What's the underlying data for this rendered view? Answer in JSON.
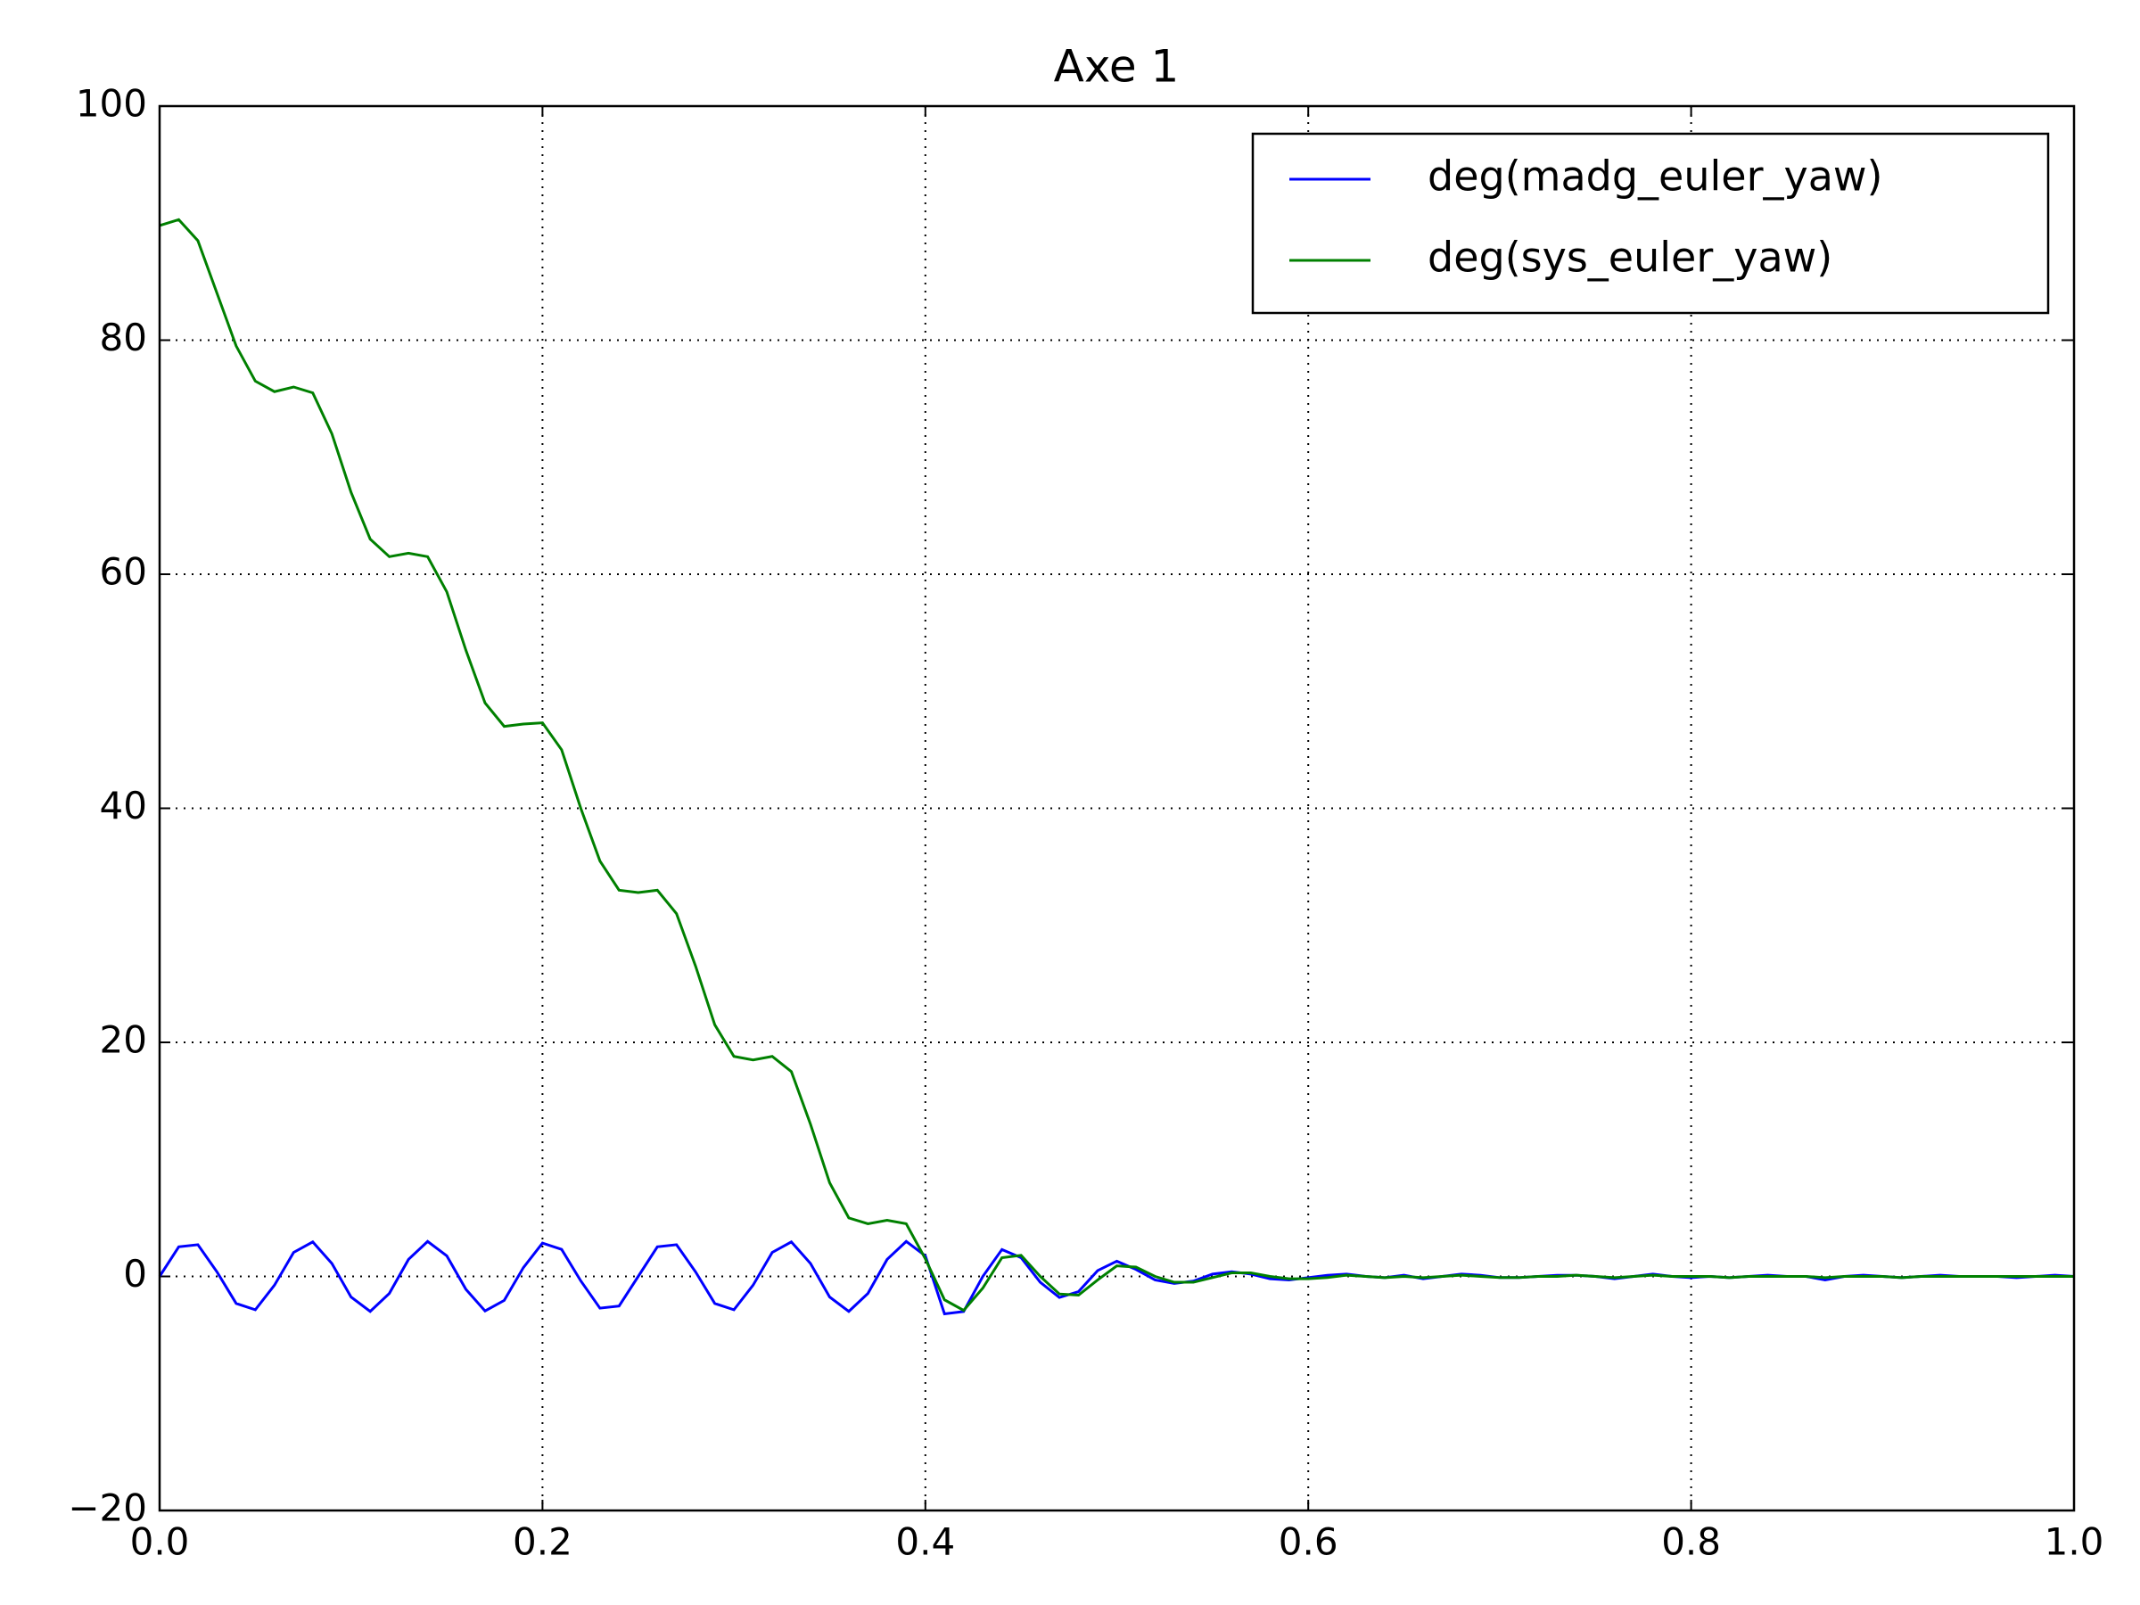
{
  "chart_data": {
    "type": "line",
    "title": "Axe 1",
    "x": [
      0,
      0.01,
      0.02,
      0.03,
      0.04,
      0.05,
      0.06,
      0.07,
      0.08,
      0.09,
      0.1,
      0.11,
      0.12,
      0.13,
      0.14,
      0.15,
      0.16,
      0.17,
      0.18,
      0.19,
      0.2,
      0.21,
      0.22,
      0.23,
      0.24,
      0.25,
      0.26,
      0.27,
      0.28,
      0.29,
      0.3,
      0.31,
      0.32,
      0.33,
      0.34,
      0.35,
      0.36,
      0.37,
      0.38,
      0.39,
      0.4,
      0.41,
      0.42,
      0.43,
      0.44,
      0.45,
      0.46,
      0.47,
      0.48,
      0.49,
      0.5,
      0.51,
      0.52,
      0.53,
      0.54,
      0.55,
      0.56,
      0.57,
      0.58,
      0.59,
      0.6,
      0.61,
      0.62,
      0.63,
      0.64,
      0.65,
      0.66,
      0.67,
      0.68,
      0.69,
      0.7,
      0.71,
      0.72,
      0.73,
      0.74,
      0.75,
      0.76,
      0.77,
      0.78,
      0.79,
      0.8,
      0.81,
      0.82,
      0.83,
      0.84,
      0.85,
      0.86,
      0.87,
      0.88,
      0.89,
      0.9,
      0.91,
      0.92,
      0.93,
      0.94,
      0.95,
      0.96,
      0.97,
      0.98,
      0.99,
      1
    ],
    "series": [
      {
        "name": "deg(madg_euler_yaw)",
        "color": "#0000ff",
        "values": [
          0,
          2.53,
          2.71,
          0.38,
          -2.31,
          -2.85,
          -0.75,
          2.05,
          2.95,
          1.1,
          -1.76,
          -2.99,
          -1.45,
          1.45,
          2.99,
          1.76,
          -1.1,
          -2.95,
          -2.05,
          0.75,
          2.85,
          2.31,
          -0.38,
          -2.71,
          -2.53,
          0,
          2.53,
          2.71,
          0.38,
          -2.31,
          -2.85,
          -0.75,
          2.05,
          2.95,
          1.1,
          -1.76,
          -2.99,
          -1.45,
          1.45,
          2.99,
          1.76,
          -3.2,
          -3.0,
          0,
          2.3,
          1.6,
          -0.5,
          -1.8,
          -1.3,
          0.5,
          1.3,
          0.6,
          -0.3,
          -0.6,
          -0.4,
          0.2,
          0.4,
          0.2,
          -0.2,
          -0.3,
          -0.1,
          0.1,
          0.2,
          0,
          -0.1,
          0.1,
          -0.2,
          0,
          0.2,
          0.1,
          -0.1,
          -0.1,
          0,
          0.1,
          0.1,
          0,
          -0.2,
          0,
          0.2,
          0,
          -0.1,
          0,
          -0.1,
          0,
          0.1,
          0,
          0,
          -0.3,
          0,
          0.1,
          0,
          -0.1,
          0,
          0.1,
          0,
          0,
          0,
          -0.1,
          0,
          0.1,
          0
        ]
      },
      {
        "name": "deg(sys_euler_yaw)",
        "color": "#008000",
        "values": [
          89.8,
          90.3,
          88.5,
          84,
          79.5,
          76.5,
          75.6,
          76,
          75.5,
          72,
          67,
          63,
          61.5,
          61.8,
          61.5,
          58.5,
          53.5,
          49,
          47,
          47.2,
          47.3,
          45,
          40,
          35.5,
          33,
          32.8,
          33,
          31,
          26.5,
          21.5,
          18.8,
          18.5,
          18.8,
          17.5,
          13,
          8,
          5,
          4.5,
          4.8,
          4.5,
          1.5,
          -2,
          -2.9,
          -1,
          1.6,
          1.8,
          0,
          -1.5,
          -1.6,
          -0.3,
          0.9,
          0.8,
          0,
          -0.5,
          -0.5,
          -0.1,
          0.3,
          0.3,
          0,
          -0.2,
          -0.2,
          -0.1,
          0.1,
          0,
          -0.1,
          0,
          -0.1,
          0,
          0.1,
          0,
          -0.1,
          -0.1,
          0,
          0,
          0.1,
          0,
          -0.1,
          0,
          0.1,
          0,
          0,
          0,
          -0.1,
          0,
          0,
          0,
          0,
          -0.1,
          0,
          0,
          0,
          -0.1,
          0,
          0,
          0,
          0,
          0,
          0,
          0,
          0,
          0
        ]
      }
    ],
    "xlim": [
      0,
      1
    ],
    "xticks": [
      {
        "value": 0,
        "label": "0.0"
      },
      0.2,
      0.4,
      0.6,
      0.8,
      {
        "value": 1,
        "label": "1.0"
      }
    ],
    "ylim": [
      -20,
      100
    ],
    "yticks": [
      {
        "value": -20,
        "label": "−20"
      },
      0,
      20,
      40,
      60,
      80,
      100
    ],
    "grid": true,
    "legend": "upper right"
  }
}
